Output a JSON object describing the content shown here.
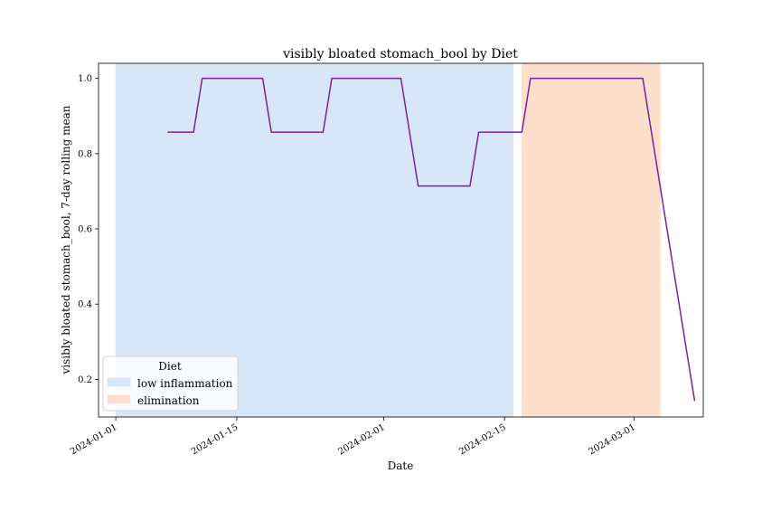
{
  "chart_data": {
    "type": "line",
    "title": "visibly bloated stomach_bool by Diet",
    "xlabel": "Date",
    "ylabel": "visibly bloated stomach_bool, 7-day rolling mean",
    "xlim": [
      "2023-12-30",
      "2024-03-09"
    ],
    "ylim": [
      0.1,
      1.04
    ],
    "x_ticks": [
      "2024-01-01",
      "2024-01-15",
      "2024-02-01",
      "2024-02-15",
      "2024-03-01"
    ],
    "y_ticks": [
      "0.2",
      "0.4",
      "0.6",
      "0.8",
      "1.0"
    ],
    "grid": false,
    "series": [
      {
        "color": "#7b1fa2",
        "x": [
          "2024-01-07",
          "2024-01-10",
          "2024-01-11",
          "2024-01-18",
          "2024-01-19",
          "2024-01-25",
          "2024-01-26",
          "2024-02-03",
          "2024-02-05",
          "2024-02-11",
          "2024-02-12",
          "2024-02-17",
          "2024-02-18",
          "2024-03-02",
          "2024-03-08"
        ],
        "y": [
          0.857,
          0.857,
          1.0,
          1.0,
          0.857,
          0.857,
          1.0,
          1.0,
          0.714,
          0.714,
          0.857,
          0.857,
          1.0,
          1.0,
          0.143
        ]
      }
    ],
    "bands": [
      {
        "name": "low inflammation",
        "start": "2024-01-01",
        "end": "2024-02-16",
        "color": "#d8e7f8"
      },
      {
        "name": "elimination",
        "start": "2024-02-17",
        "end": "2024-03-04",
        "color": "#fedfcb"
      }
    ],
    "legend": {
      "title": "Diet",
      "placement": "lower-left",
      "entries": [
        "low inflammation",
        "elimination"
      ]
    }
  }
}
